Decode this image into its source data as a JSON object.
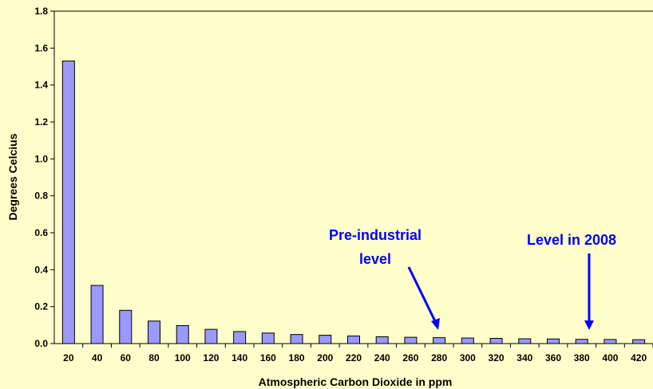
{
  "chart_data": {
    "type": "bar",
    "title": "",
    "xlabel": "Atmospheric Carbon Dioxide in ppm",
    "ylabel": "Degrees Celcius",
    "categories": [
      "20",
      "40",
      "60",
      "80",
      "100",
      "120",
      "140",
      "160",
      "180",
      "200",
      "220",
      "240",
      "260",
      "280",
      "300",
      "320",
      "340",
      "360",
      "380",
      "400",
      "420"
    ],
    "values": [
      1.53,
      0.315,
      0.18,
      0.122,
      0.097,
      0.077,
      0.065,
      0.057,
      0.049,
      0.045,
      0.041,
      0.037,
      0.034,
      0.032,
      0.03,
      0.028,
      0.026,
      0.025,
      0.023,
      0.022,
      0.021
    ],
    "ylim": [
      0,
      1.8
    ],
    "yticks": [
      "0.0",
      "0.2",
      "0.4",
      "0.6",
      "0.8",
      "1.0",
      "1.2",
      "1.4",
      "1.6",
      "1.8"
    ],
    "grid": false,
    "colors": {
      "background": "#ffffcc",
      "bar_fill": "#9999ff",
      "bar_stroke": "#000000",
      "annotation": "#0000ff"
    },
    "annotations": [
      {
        "lines": [
          "Pre-industrial",
          "level"
        ],
        "points_to": "280"
      },
      {
        "lines": [
          "Level in 2008"
        ],
        "points_to": "380"
      }
    ]
  }
}
